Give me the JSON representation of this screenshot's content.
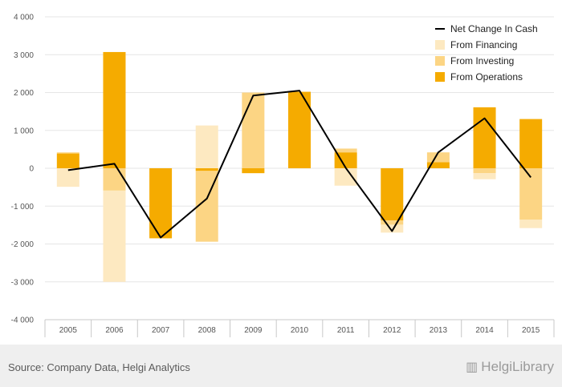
{
  "colors": {
    "operations": "#f5ab00",
    "investing": "#fcd584",
    "financing": "#fde9c1",
    "net_line": "#000000",
    "grid": "#e6e6e6",
    "axis": "#c8c8c8",
    "footer_bg": "#efefef"
  },
  "footer": {
    "source": "Source: Company Data, Helgi Analytics",
    "brand": "HelgiLibrary",
    "brand_icon": "library-icon"
  },
  "chart_data": {
    "type": "bar",
    "stacked": true,
    "categories": [
      "2005",
      "2006",
      "2007",
      "2008",
      "2009",
      "2010",
      "2011",
      "2012",
      "2013",
      "2014",
      "2015"
    ],
    "ylim": [
      -4000,
      4000
    ],
    "yticks": [
      -4000,
      -3000,
      -2000,
      -1000,
      0,
      1000,
      2000,
      3000,
      4000
    ],
    "ytick_labels": [
      "-4 000",
      "-3 000",
      "-2 000",
      "-1 000",
      "0",
      "1 000",
      "2 000",
      "3 000",
      "4 000"
    ],
    "grid": true,
    "legend_position": "top-right",
    "series": [
      {
        "name": "From Operations",
        "kind": "bar",
        "color_key": "operations",
        "values": [
          390,
          3070,
          -1850,
          -70,
          -130,
          2020,
          420,
          -1380,
          160,
          1610,
          1300
        ]
      },
      {
        "name": "From Investing",
        "kind": "bar",
        "color_key": "investing",
        "values": [
          30,
          -590,
          0,
          -1870,
          2000,
          0,
          100,
          -110,
          260,
          -130,
          -1360
        ]
      },
      {
        "name": "From Financing",
        "kind": "bar",
        "color_key": "financing",
        "values": [
          -490,
          -2410,
          0,
          1130,
          0,
          0,
          -460,
          -210,
          0,
          -160,
          -220
        ]
      },
      {
        "name": "Net Change In Cash",
        "kind": "line",
        "color_key": "net_line",
        "values": [
          -50,
          120,
          -1830,
          -800,
          1920,
          2050,
          10,
          -1660,
          420,
          1320,
          -240
        ]
      }
    ],
    "legend_order": [
      "Net Change In Cash",
      "From Financing",
      "From Investing",
      "From Operations"
    ]
  }
}
